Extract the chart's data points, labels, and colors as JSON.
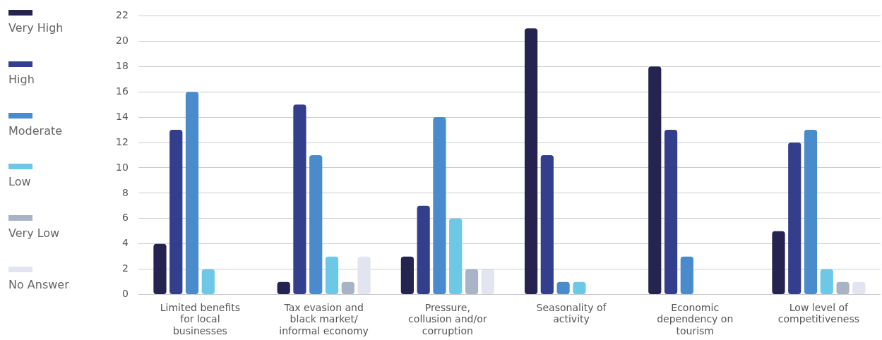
{
  "chart_data": {
    "type": "bar",
    "categories": [
      "Limited benefits for local businesses",
      "Tax evasion and black market/ informal economy",
      "Pressure, collusion and/or corruption",
      "Seasonality of activity",
      "Economic dependency on tourism",
      "Low level of competitiveness"
    ],
    "series": [
      {
        "name": "Very High",
        "color": "#252350",
        "values": [
          4,
          1,
          3,
          21,
          18,
          5
        ]
      },
      {
        "name": "High",
        "color": "#333f8c",
        "values": [
          13,
          15,
          7,
          11,
          13,
          12
        ]
      },
      {
        "name": "Moderate",
        "color": "#4a8ccb",
        "values": [
          16,
          11,
          14,
          1,
          3,
          13
        ]
      },
      {
        "name": "Low",
        "color": "#6dc8e8",
        "values": [
          2,
          3,
          6,
          1,
          null,
          2
        ]
      },
      {
        "name": "Very Low",
        "color": "#a8b4c6",
        "values": [
          null,
          1,
          2,
          null,
          null,
          1
        ]
      },
      {
        "name": "No Answer",
        "color": "#e2e5ef",
        "values": [
          null,
          3,
          2,
          null,
          null,
          1
        ]
      }
    ],
    "ylim": [
      0,
      22
    ],
    "yticks": [
      0,
      2,
      4,
      6,
      8,
      10,
      12,
      14,
      16,
      18,
      20,
      22
    ],
    "grid": "y",
    "legend": "left"
  }
}
